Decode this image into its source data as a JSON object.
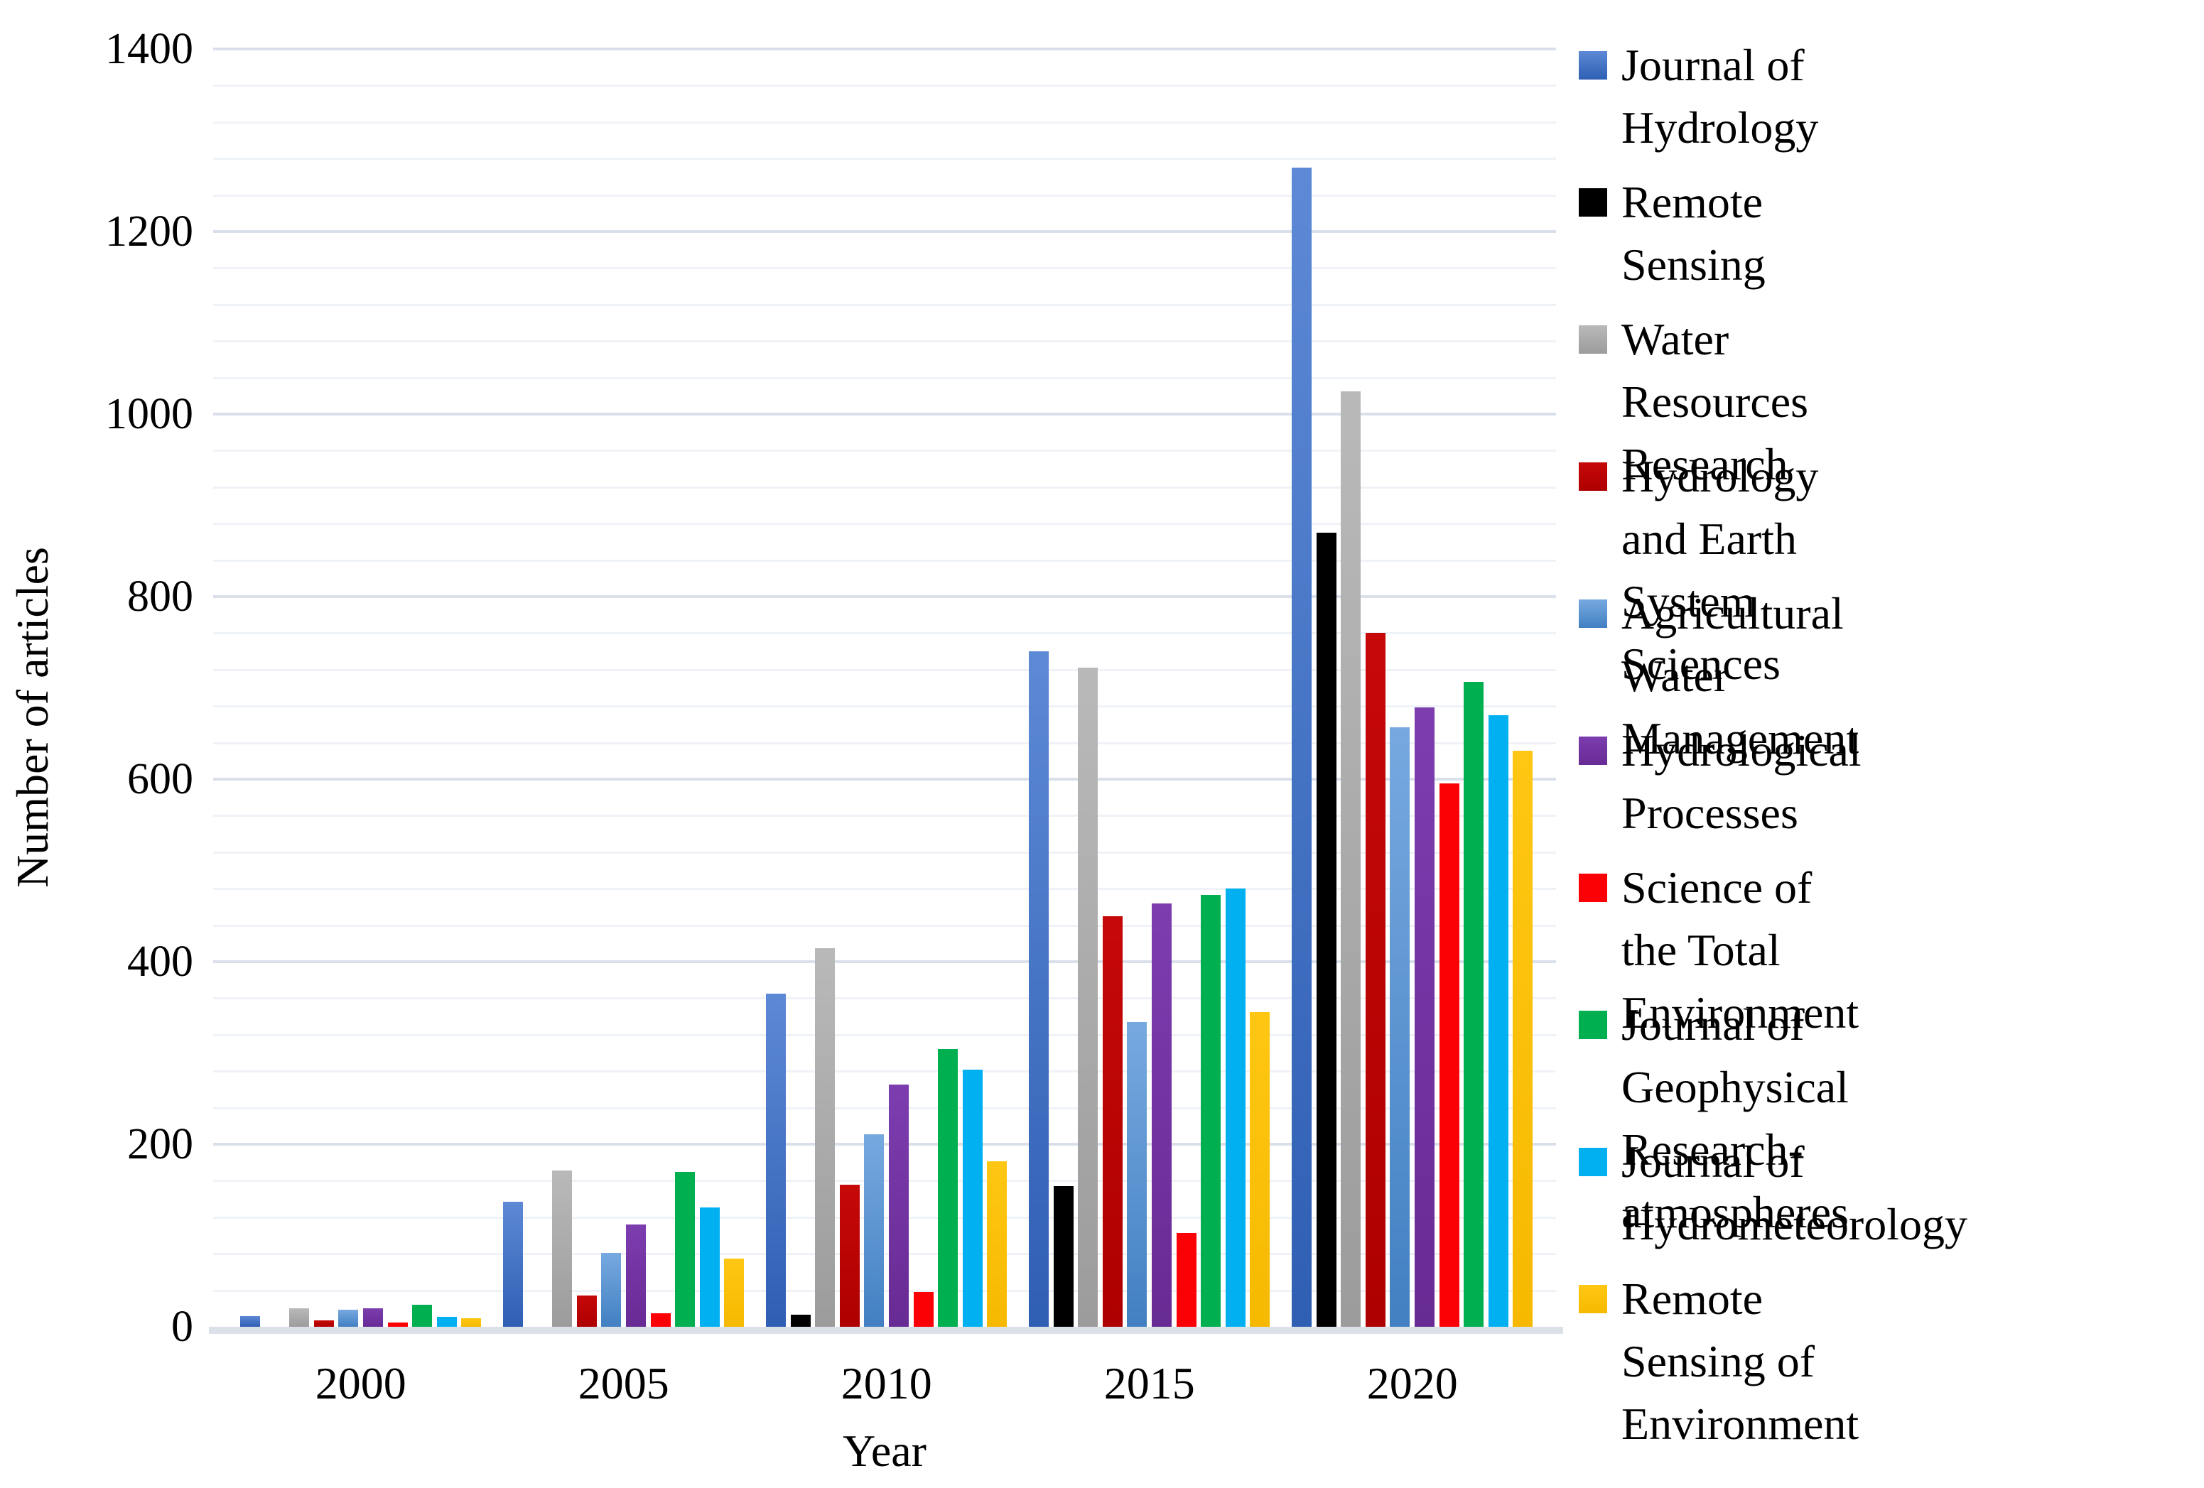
{
  "chart_data": {
    "type": "bar",
    "title": "",
    "xlabel": "Year",
    "ylabel": "Number of articles",
    "categories": [
      "2000",
      "2005",
      "2010",
      "2015",
      "2020"
    ],
    "ylim": [
      0,
      1400
    ],
    "y_major_step": 200,
    "y_minor_step": 40,
    "y_ticks": [
      0,
      200,
      400,
      600,
      800,
      1000,
      1200,
      1400
    ],
    "grid": "horizontal, major and minor, on",
    "legend_position": "right",
    "series": [
      {
        "name": "Journal of Hydrology",
        "label_lines": [
          "Journal of Hydrology"
        ],
        "color_top": "#5D89D6",
        "color": "#2F5FB3",
        "values": [
          12,
          137,
          365,
          740,
          1270
        ]
      },
      {
        "name": "Remote Sensing",
        "label_lines": [
          "Remote Sensing"
        ],
        "color": "#000000",
        "values": [
          0,
          0,
          13,
          154,
          870
        ]
      },
      {
        "name": "Water Resources Research",
        "label_lines": [
          "Water Resources Research"
        ],
        "color_top": "#B9B9B9",
        "color": "#9C9C9C",
        "values": [
          20,
          171,
          415,
          722,
          1025
        ]
      },
      {
        "name": "Hydrology and Earth System Sciences",
        "label_lines": [
          "Hydrology and Earth",
          "System Sciences"
        ],
        "color_top": "#C60808",
        "color": "#AE0000",
        "values": [
          7,
          34,
          156,
          450,
          760
        ]
      },
      {
        "name": "Agricultural Water Management",
        "label_lines": [
          "Agricultural Water",
          "Management"
        ],
        "color_top": "#77A9E0",
        "color": "#4280C2",
        "values": [
          19,
          81,
          211,
          334,
          657
        ]
      },
      {
        "name": "Hydrological Processes",
        "label_lines": [
          "Hydrological Processes"
        ],
        "color_top": "#7C3DAF",
        "color": "#682B94",
        "values": [
          20,
          112,
          265,
          464,
          679
        ]
      },
      {
        "name": "Science of the Total Environment",
        "label_lines": [
          "Science of the Total",
          "Environment"
        ],
        "color": "#FB0005",
        "values": [
          5,
          15,
          38,
          103,
          595
        ]
      },
      {
        "name": "Journal of Geophysical Research-atmospheres",
        "label_lines": [
          "Journal of Geophysical",
          "Research-atmospheres"
        ],
        "color": "#00AF50",
        "values": [
          24,
          170,
          304,
          473,
          707
        ]
      },
      {
        "name": "Journal of Hydrometeorology",
        "label_lines": [
          "Journal of",
          "Hydrometeorology"
        ],
        "color": "#00B0F0",
        "values": [
          11,
          131,
          282,
          480,
          670
        ]
      },
      {
        "name": "Remote Sensing of Environment",
        "label_lines": [
          "Remote Sensing of",
          "Environment"
        ],
        "color_top": "#FFC713",
        "color": "#F6B900",
        "values": [
          9,
          75,
          181,
          345,
          631
        ]
      }
    ]
  }
}
